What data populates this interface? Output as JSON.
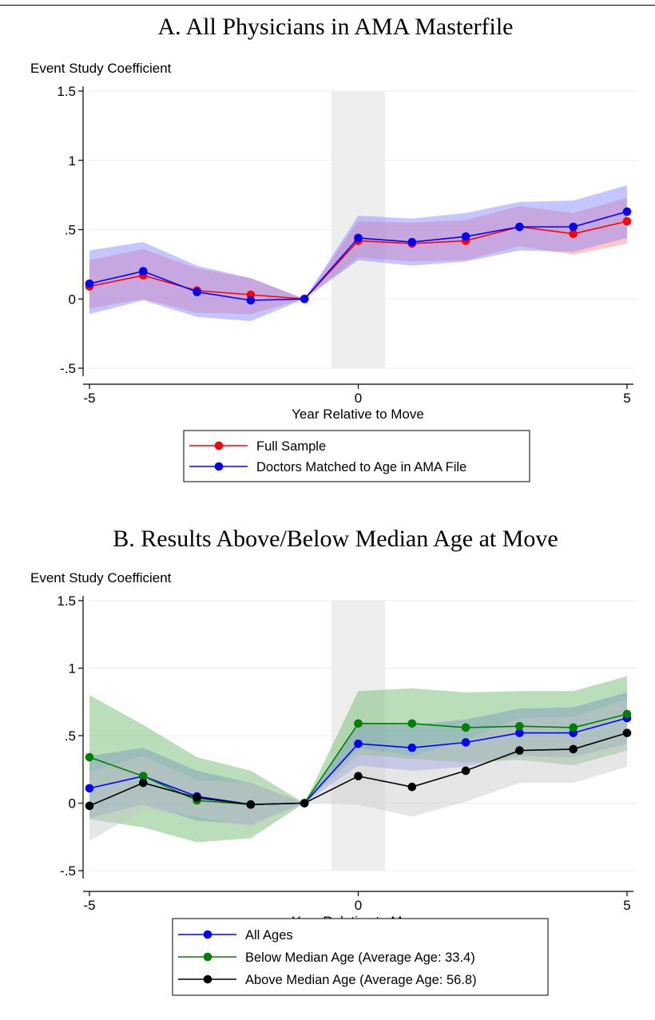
{
  "chart_data": [
    {
      "type": "line",
      "title": "A. All Physicians in AMA Masterfile",
      "ylabel": "Event Study Coefficient",
      "xlabel": "Year Relative to Move",
      "x": [
        -5,
        -4,
        -3,
        -2,
        -1,
        0,
        1,
        2,
        3,
        4,
        5
      ],
      "xticks": [
        -5,
        0,
        5
      ],
      "xtick_labels": [
        "-5",
        "0",
        "5"
      ],
      "yticks": [
        -0.5,
        0,
        0.5,
        1,
        1.5
      ],
      "ytick_labels": [
        "-.5",
        "0",
        ".5",
        "1",
        "1.5"
      ],
      "xlim": [
        -5,
        5
      ],
      "ylim": [
        -0.5,
        1.5
      ],
      "shaded_region_x": [
        -0.5,
        0.5
      ],
      "grid": true,
      "legend_position": "bottom-center",
      "series": [
        {
          "name": "Full Sample",
          "color": "#ff0000",
          "band_color": "#ff8080",
          "values": [
            0.09,
            0.17,
            0.06,
            0.03,
            0.0,
            0.42,
            0.4,
            0.42,
            0.52,
            0.47,
            0.56
          ],
          "ci_low": [
            -0.07,
            0.0,
            -0.1,
            -0.11,
            0.0,
            0.3,
            0.27,
            0.28,
            0.38,
            0.32,
            0.4
          ],
          "ci_high": [
            0.28,
            0.36,
            0.22,
            0.15,
            0.0,
            0.56,
            0.55,
            0.57,
            0.67,
            0.62,
            0.73
          ]
        },
        {
          "name": "Doctors Matched to Age in AMA File",
          "color": "#0000ff",
          "band_color": "#8080ff",
          "values": [
            0.11,
            0.2,
            0.05,
            -0.01,
            0.0,
            0.44,
            0.41,
            0.45,
            0.52,
            0.52,
            0.63
          ],
          "ci_low": [
            -0.11,
            -0.01,
            -0.13,
            -0.16,
            0.0,
            0.28,
            0.24,
            0.27,
            0.35,
            0.34,
            0.44
          ],
          "ci_high": [
            0.35,
            0.41,
            0.24,
            0.15,
            0.0,
            0.6,
            0.58,
            0.62,
            0.7,
            0.71,
            0.82
          ]
        }
      ]
    },
    {
      "type": "line",
      "title": "B. Results Above/Below Median Age at Move",
      "ylabel": "Event Study Coefficient",
      "xlabel": "Year Relative to Move",
      "x": [
        -5,
        -4,
        -3,
        -2,
        -1,
        0,
        1,
        2,
        3,
        4,
        5
      ],
      "xticks": [
        -5,
        0,
        5
      ],
      "xtick_labels": [
        "-5",
        "0",
        "5"
      ],
      "yticks": [
        -0.5,
        0,
        0.5,
        1,
        1.5
      ],
      "ytick_labels": [
        "-.5",
        "0",
        ".5",
        "1",
        "1.5"
      ],
      "xlim": [
        -5,
        5
      ],
      "ylim": [
        -0.5,
        1.5
      ],
      "shaded_region_x": [
        -0.5,
        0.5
      ],
      "grid": true,
      "legend_position": "bottom-center",
      "series": [
        {
          "name": "All Ages",
          "color": "#0000ff",
          "band_color": "#8080ff",
          "values": [
            0.11,
            0.2,
            0.05,
            -0.01,
            0.0,
            0.44,
            0.41,
            0.45,
            0.52,
            0.52,
            0.63
          ],
          "ci_low": [
            -0.11,
            -0.01,
            -0.13,
            -0.16,
            0.0,
            0.28,
            0.24,
            0.27,
            0.35,
            0.34,
            0.44
          ],
          "ci_high": [
            0.35,
            0.41,
            0.24,
            0.15,
            0.0,
            0.6,
            0.58,
            0.62,
            0.7,
            0.71,
            0.82
          ]
        },
        {
          "name": "Below Median Age (Average Age: 33.4)",
          "color": "#008000",
          "band_color": "#66b366",
          "values": [
            0.34,
            0.2,
            0.02,
            -0.01,
            0.0,
            0.59,
            0.59,
            0.56,
            0.57,
            0.56,
            0.66
          ],
          "ci_low": [
            -0.12,
            -0.18,
            -0.29,
            -0.26,
            0.0,
            0.36,
            0.33,
            0.3,
            0.32,
            0.28,
            0.39
          ],
          "ci_high": [
            0.8,
            0.58,
            0.34,
            0.24,
            0.0,
            0.83,
            0.85,
            0.82,
            0.83,
            0.83,
            0.94
          ]
        },
        {
          "name": "Above Median Age (Average Age: 56.8)",
          "color": "#000000",
          "band_color": "#c8c8c8",
          "values": [
            -0.02,
            0.15,
            0.04,
            -0.01,
            0.0,
            0.2,
            0.12,
            0.24,
            0.39,
            0.4,
            0.52
          ],
          "ci_low": [
            -0.28,
            -0.05,
            -0.1,
            -0.18,
            0.0,
            -0.01,
            -0.1,
            0.01,
            0.15,
            0.15,
            0.27
          ],
          "ci_high": [
            0.23,
            0.35,
            0.17,
            0.15,
            0.0,
            0.41,
            0.35,
            0.47,
            0.63,
            0.64,
            0.77
          ]
        }
      ]
    }
  ]
}
